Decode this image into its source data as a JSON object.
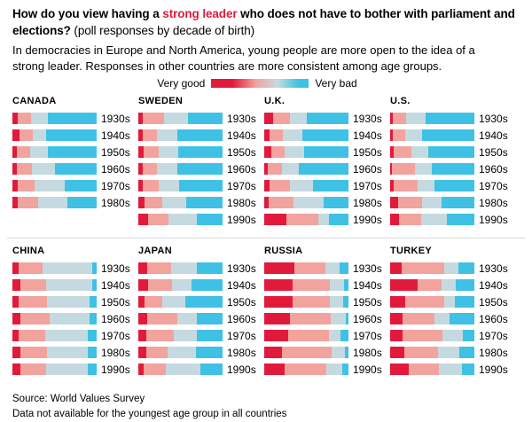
{
  "header": {
    "title_parts": {
      "bold1": "How do you view having a ",
      "highlight": "strong leader",
      "bold2": " who does not have to bother with parliament and elections?",
      "normal": " (poll responses by decade of birth)"
    },
    "subtitle": "In democracies in Europe and North America, young people are more open to the idea of a strong leader. Responses in other countries are more consistent among age groups."
  },
  "legend": {
    "left": "Very good",
    "right": "Very bad"
  },
  "footer": {
    "source": "Source: World Values Survey",
    "note": "Data not available for the youngest age group in all countries"
  },
  "chart_data": {
    "type": "bar",
    "variant": "horizontal-stacked-small-multiples",
    "unit": "percent of respondents (segments sum to 100)",
    "legend": {
      "left_label": "Very good",
      "right_label": "Very bad",
      "style": "diverging red to blue gradient"
    },
    "segment_order": [
      "very_good",
      "fairly_good",
      "fairly_bad",
      "very_bad"
    ],
    "segment_colors": {
      "very_good": "#e11a3c",
      "fairly_good": "#f2a39e",
      "fairly_bad": "#c5dae0",
      "very_bad": "#3ec1e5"
    },
    "layout": {
      "rows_of_panels": 2,
      "panels_per_row": 4
    },
    "countries": [
      {
        "name": "CANADA",
        "group": "democracies",
        "rows": [
          {
            "decade": "1930s",
            "values": [
              6,
              16,
              20,
              58
            ]
          },
          {
            "decade": "1940s",
            "values": [
              8,
              16,
              16,
              60
            ]
          },
          {
            "decade": "1950s",
            "values": [
              5,
              16,
              21,
              58
            ]
          },
          {
            "decade": "1960s",
            "values": [
              5,
              18,
              28,
              49
            ]
          },
          {
            "decade": "1970s",
            "values": [
              6,
              20,
              36,
              38
            ]
          },
          {
            "decade": "1980s",
            "values": [
              6,
              25,
              34,
              35
            ]
          }
        ]
      },
      {
        "name": "SWEDEN",
        "group": "democracies",
        "rows": [
          {
            "decade": "1930s",
            "values": [
              5,
              26,
              28,
              41
            ]
          },
          {
            "decade": "1940s",
            "values": [
              5,
              17,
              24,
              54
            ]
          },
          {
            "decade": "1950s",
            "values": [
              6,
              18,
              23,
              53
            ]
          },
          {
            "decade": "1960s",
            "values": [
              5,
              17,
              24,
              54
            ]
          },
          {
            "decade": "1970s",
            "values": [
              5,
              19,
              24,
              52
            ]
          },
          {
            "decade": "1980s",
            "values": [
              7,
              21,
              29,
              43
            ]
          },
          {
            "decade": "1990s",
            "values": [
              12,
              24,
              33,
              31
            ]
          }
        ]
      },
      {
        "name": "U.K.",
        "group": "democracies",
        "rows": [
          {
            "decade": "1930s",
            "values": [
              11,
              20,
              20,
              49
            ]
          },
          {
            "decade": "1940s",
            "values": [
              6,
              16,
              23,
              55
            ]
          },
          {
            "decade": "1950s",
            "values": [
              8,
              16,
              23,
              53
            ]
          },
          {
            "decade": "1960s",
            "values": [
              4,
              17,
              20,
              59
            ]
          },
          {
            "decade": "1970s",
            "values": [
              6,
              25,
              27,
              42
            ]
          },
          {
            "decade": "1980s",
            "values": [
              5,
              30,
              36,
              29
            ]
          },
          {
            "decade": "1990s",
            "values": [
              26,
              38,
              13,
              23
            ]
          }
        ]
      },
      {
        "name": "U.S.",
        "group": "democracies",
        "rows": [
          {
            "decade": "1930s",
            "values": [
              3,
              16,
              23,
              58
            ]
          },
          {
            "decade": "1940s",
            "values": [
              3,
              15,
              20,
              62
            ]
          },
          {
            "decade": "1950s",
            "values": [
              4,
              21,
              20,
              55
            ]
          },
          {
            "decade": "1960s",
            "values": [
              2,
              28,
              19,
              51
            ]
          },
          {
            "decade": "1970s",
            "values": [
              4,
              29,
              20,
              47
            ]
          },
          {
            "decade": "1980s",
            "values": [
              9,
              29,
              23,
              39
            ]
          },
          {
            "decade": "1990s",
            "values": [
              11,
              26,
              30,
              33
            ]
          }
        ]
      },
      {
        "name": "CHINA",
        "group": "other",
        "rows": [
          {
            "decade": "1930s",
            "values": [
              7,
              29,
              59,
              5
            ]
          },
          {
            "decade": "1940s",
            "values": [
              9,
              31,
              55,
              5
            ]
          },
          {
            "decade": "1950s",
            "values": [
              7,
              34,
              51,
              8
            ]
          },
          {
            "decade": "1960s",
            "values": [
              9,
              35,
              48,
              8
            ]
          },
          {
            "decade": "1970s",
            "values": [
              7,
              32,
              51,
              10
            ]
          },
          {
            "decade": "1980s",
            "values": [
              9,
              32,
              49,
              10
            ]
          },
          {
            "decade": "1990s",
            "values": [
              9,
              31,
              49,
              11
            ]
          }
        ]
      },
      {
        "name": "JAPAN",
        "group": "other",
        "rows": [
          {
            "decade": "1930s",
            "values": [
              10,
              29,
              30,
              31
            ]
          },
          {
            "decade": "1940s",
            "values": [
              12,
              28,
              23,
              37
            ]
          },
          {
            "decade": "1950s",
            "values": [
              7,
              21,
              28,
              44
            ]
          },
          {
            "decade": "1960s",
            "values": [
              11,
              35,
              23,
              31
            ]
          },
          {
            "decade": "1970s",
            "values": [
              9,
              33,
              28,
              30
            ]
          },
          {
            "decade": "1980s",
            "values": [
              9,
              26,
              33,
              32
            ]
          },
          {
            "decade": "1990s",
            "values": [
              6,
              27,
              41,
              26
            ]
          }
        ]
      },
      {
        "name": "RUSSIA",
        "group": "other",
        "rows": [
          {
            "decade": "1930s",
            "values": [
              36,
              37,
              16,
              11
            ]
          },
          {
            "decade": "1940s",
            "values": [
              34,
              44,
              17,
              5
            ]
          },
          {
            "decade": "1950s",
            "values": [
              34,
              44,
              16,
              6
            ]
          },
          {
            "decade": "1960s",
            "values": [
              31,
              48,
              18,
              3
            ]
          },
          {
            "decade": "1970s",
            "values": [
              28,
              49,
              14,
              9
            ]
          },
          {
            "decade": "1980s",
            "values": [
              21,
              59,
              16,
              4
            ]
          },
          {
            "decade": "1990s",
            "values": [
              24,
              50,
              19,
              7
            ]
          }
        ]
      },
      {
        "name": "TURKEY",
        "group": "other",
        "rows": [
          {
            "decade": "1930s",
            "values": [
              14,
              50,
              17,
              19
            ]
          },
          {
            "decade": "1940s",
            "values": [
              33,
              28,
              17,
              22
            ]
          },
          {
            "decade": "1950s",
            "values": [
              18,
              46,
              13,
              23
            ]
          },
          {
            "decade": "1960s",
            "values": [
              15,
              38,
              18,
              29
            ]
          },
          {
            "decade": "1970s",
            "values": [
              15,
              47,
              24,
              14
            ]
          },
          {
            "decade": "1980s",
            "values": [
              17,
              40,
              25,
              18
            ]
          },
          {
            "decade": "1990s",
            "values": [
              22,
              36,
              27,
              15
            ]
          }
        ]
      }
    ]
  }
}
